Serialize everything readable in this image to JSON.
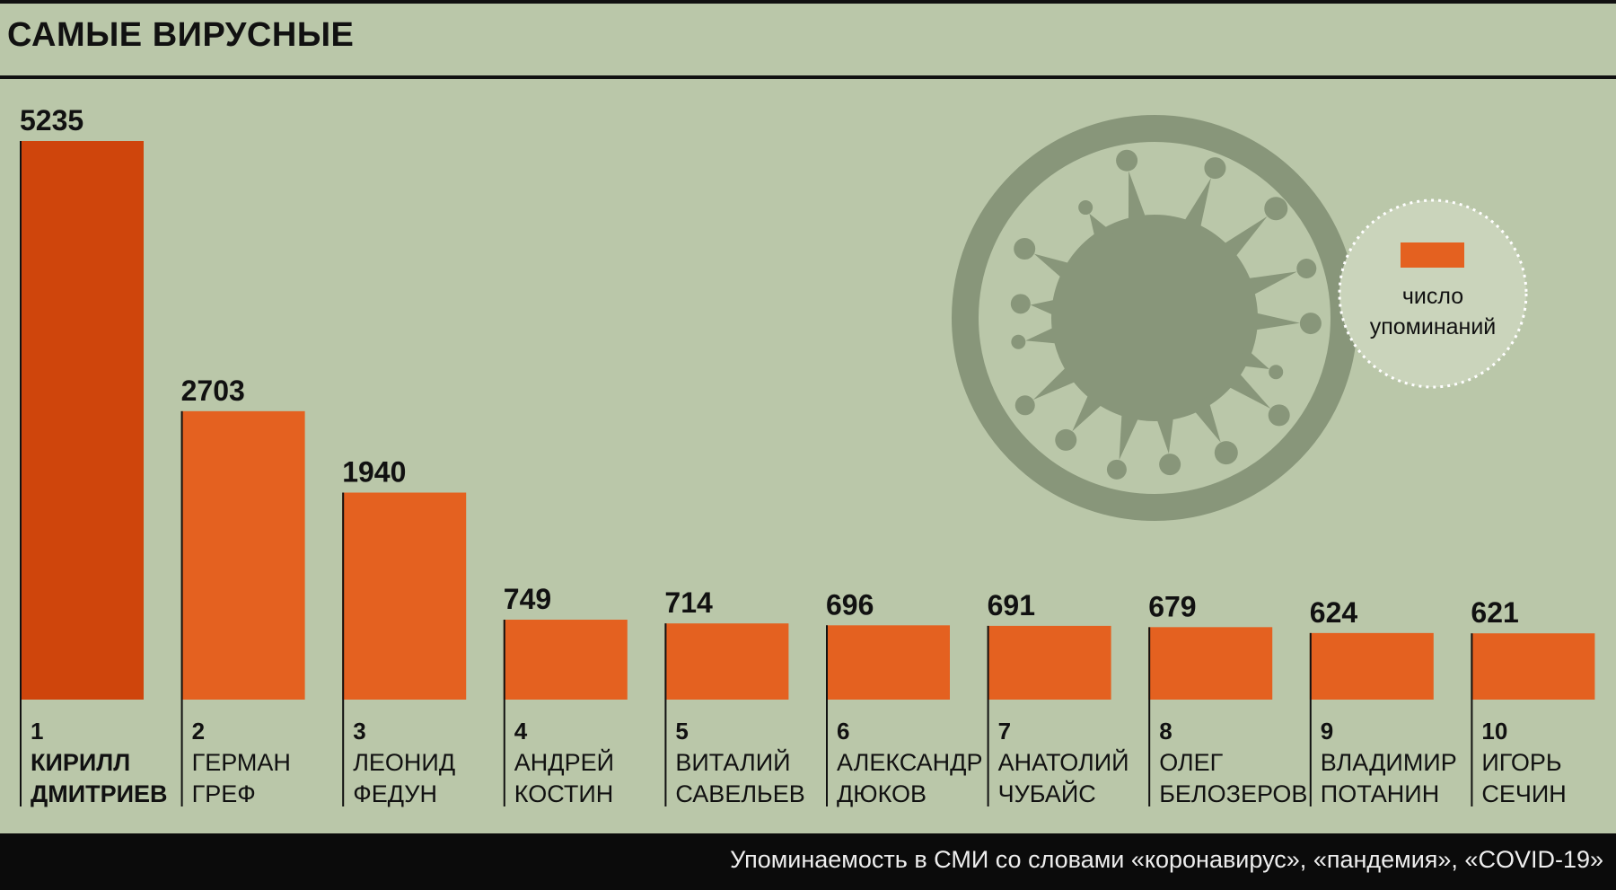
{
  "title": "САМЫЕ ВИРУСНЫЕ",
  "footer": "Упоминаемость в СМИ со словами «коронавирус», «пандемия», «COVID-19»",
  "legend": {
    "label_line1": "число",
    "label_line2": "упоминаний",
    "swatch_color": "#e46120"
  },
  "colors": {
    "background": "#bac7a9",
    "bar": "#e46120",
    "bar_top": "#cf450c",
    "virus": "#88967a"
  },
  "icons": [
    "virus-icon"
  ],
  "chart_data": {
    "type": "bar",
    "title": "САМЫЕ ВИРУСНЫЕ",
    "categories": [
      "1 КИРИЛЛ ДМИТРИЕВ",
      "2 ГЕРМАН ГРЕФ",
      "3 ЛЕОНИД ФЕДУН",
      "4 АНДРЕЙ КОСТИН",
      "5 ВИТАЛИЙ САВЕЛЬЕВ",
      "6 АЛЕКСАНДР ДЮКОВ",
      "7 АНАТОЛИЙ ЧУБАЙС",
      "8 ОЛЕГ БЕЛОЗЕРОВ",
      "9 ВЛАДИМИР ПОТАНИН",
      "10 ИГОРЬ СЕЧИН"
    ],
    "ranks": [
      "1",
      "2",
      "3",
      "4",
      "5",
      "6",
      "7",
      "8",
      "9",
      "10"
    ],
    "names": [
      [
        "КИРИЛЛ",
        "ДМИТРИЕВ"
      ],
      [
        "ГЕРМАН",
        "ГРЕФ"
      ],
      [
        "ЛЕОНИД",
        "ФЕДУН"
      ],
      [
        "АНДРЕЙ",
        "КОСТИН"
      ],
      [
        "ВИТАЛИЙ",
        "САВЕЛЬЕВ"
      ],
      [
        "АЛЕКСАНДР",
        "ДЮКОВ"
      ],
      [
        "АНАТОЛИЙ",
        "ЧУБАЙС"
      ],
      [
        "ОЛЕГ",
        "БЕЛОЗЕРОВ"
      ],
      [
        "ВЛАДИМИР",
        "ПОТАНИН"
      ],
      [
        "ИГОРЬ",
        "СЕЧИН"
      ]
    ],
    "values": [
      5235,
      2703,
      1940,
      749,
      714,
      696,
      691,
      679,
      624,
      621
    ],
    "ylim": [
      0,
      5235
    ],
    "grid": false,
    "legend_position": "top-right"
  }
}
